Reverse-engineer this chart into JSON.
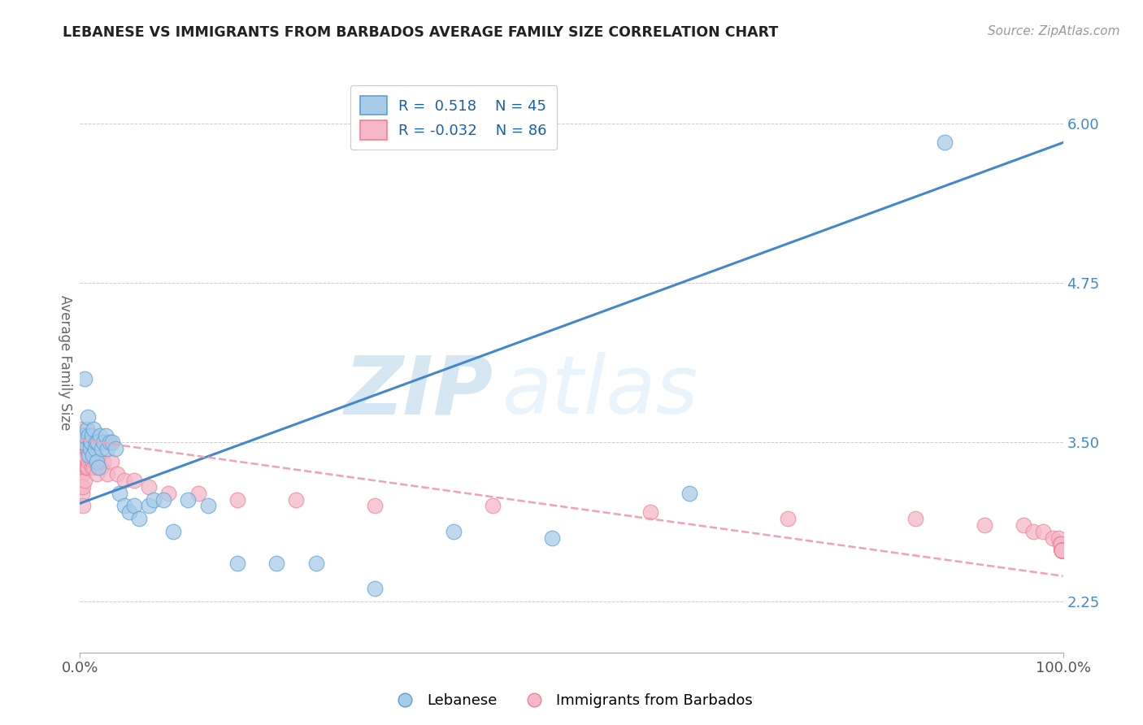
{
  "title": "LEBANESE VS IMMIGRANTS FROM BARBADOS AVERAGE FAMILY SIZE CORRELATION CHART",
  "source_text": "Source: ZipAtlas.com",
  "ylabel": "Average Family Size",
  "xlim": [
    0,
    1.0
  ],
  "ylim": [
    1.85,
    6.4
  ],
  "ytick_labels": [
    "2.25",
    "3.50",
    "4.75",
    "6.00"
  ],
  "ytick_values": [
    2.25,
    3.5,
    4.75,
    6.0
  ],
  "watermark_zip": "ZIP",
  "watermark_atlas": "atlas",
  "legend_r1": "R =  0.518",
  "legend_n1": "N = 45",
  "legend_r2": "R = -0.032",
  "legend_n2": "N = 86",
  "color_blue": "#a8cce8",
  "color_pink": "#f4b8c8",
  "color_blue_edge": "#5a9fd4",
  "color_pink_edge": "#f08098",
  "color_line_blue": "#4488cc",
  "color_line_pink": "#f0a0b8",
  "color_ytick": "#4488cc",
  "label_lebanese": "Lebanese",
  "label_barbados": "Immigrants from Barbados",
  "blue_line_x0": 0.0,
  "blue_line_y0": 3.02,
  "blue_line_x1": 1.0,
  "blue_line_y1": 5.85,
  "pink_line_x0": 0.0,
  "pink_line_y0": 3.52,
  "pink_line_x1": 1.0,
  "pink_line_y1": 2.45,
  "blue_x": [
    0.003,
    0.005,
    0.005,
    0.007,
    0.008,
    0.009,
    0.009,
    0.01,
    0.01,
    0.011,
    0.012,
    0.013,
    0.014,
    0.015,
    0.016,
    0.017,
    0.018,
    0.019,
    0.02,
    0.022,
    0.024,
    0.026,
    0.028,
    0.03,
    0.033,
    0.036,
    0.04,
    0.045,
    0.05,
    0.055,
    0.06,
    0.07,
    0.075,
    0.085,
    0.095,
    0.11,
    0.13,
    0.16,
    0.2,
    0.24,
    0.3,
    0.38,
    0.48,
    0.62,
    0.88
  ],
  "blue_y": [
    3.5,
    4.0,
    3.55,
    3.6,
    3.7,
    3.4,
    3.55,
    3.5,
    3.45,
    3.5,
    3.55,
    3.4,
    3.6,
    3.45,
    3.5,
    3.35,
    3.5,
    3.3,
    3.55,
    3.45,
    3.5,
    3.55,
    3.45,
    3.5,
    3.5,
    3.45,
    3.1,
    3.0,
    2.95,
    3.0,
    2.9,
    3.0,
    3.05,
    3.05,
    2.8,
    3.05,
    3.0,
    2.55,
    2.55,
    2.55,
    2.35,
    2.8,
    2.75,
    3.1,
    5.85
  ],
  "pink_x": [
    0.001,
    0.001,
    0.001,
    0.001,
    0.001,
    0.001,
    0.001,
    0.001,
    0.002,
    0.002,
    0.002,
    0.002,
    0.002,
    0.002,
    0.003,
    0.003,
    0.003,
    0.003,
    0.003,
    0.003,
    0.004,
    0.004,
    0.004,
    0.005,
    0.005,
    0.005,
    0.006,
    0.006,
    0.007,
    0.007,
    0.008,
    0.008,
    0.009,
    0.01,
    0.011,
    0.012,
    0.013,
    0.014,
    0.015,
    0.017,
    0.019,
    0.021,
    0.024,
    0.028,
    0.032,
    0.038,
    0.045,
    0.055,
    0.07,
    0.09,
    0.12,
    0.16,
    0.22,
    0.3,
    0.42,
    0.58,
    0.72,
    0.85,
    0.92,
    0.96,
    0.97,
    0.98,
    0.99,
    0.995,
    0.997,
    0.998,
    0.999,
    0.999,
    0.999,
    0.999,
    0.999,
    0.999,
    0.999,
    0.999,
    0.999,
    0.999,
    0.999,
    0.999,
    0.999,
    0.999,
    0.999,
    0.999,
    0.999,
    0.999,
    0.999,
    0.999,
    0.999
  ],
  "pink_y": [
    3.6,
    3.5,
    3.4,
    3.3,
    3.55,
    3.45,
    3.25,
    3.15,
    3.55,
    3.5,
    3.45,
    3.35,
    3.25,
    3.1,
    3.55,
    3.45,
    3.35,
    3.25,
    3.15,
    3.0,
    3.5,
    3.4,
    3.3,
    3.5,
    3.4,
    3.2,
    3.45,
    3.3,
    3.45,
    3.3,
    3.45,
    3.3,
    3.35,
    3.4,
    3.35,
    3.3,
    3.35,
    3.3,
    3.35,
    3.25,
    3.35,
    3.3,
    3.35,
    3.25,
    3.35,
    3.25,
    3.2,
    3.2,
    3.15,
    3.1,
    3.1,
    3.05,
    3.05,
    3.0,
    3.0,
    2.95,
    2.9,
    2.9,
    2.85,
    2.85,
    2.8,
    2.8,
    2.75,
    2.75,
    2.7,
    2.7,
    2.65,
    2.65,
    2.65,
    2.65,
    2.65,
    2.65,
    2.65,
    2.65,
    2.65,
    2.65,
    2.65,
    2.65,
    2.65,
    2.65,
    2.65,
    2.65,
    2.65,
    2.65,
    2.65,
    2.65,
    2.65
  ]
}
